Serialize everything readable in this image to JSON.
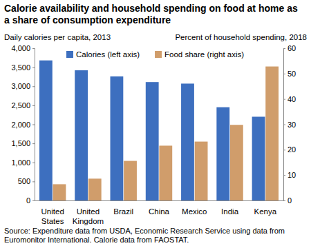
{
  "chart_data": {
    "type": "bar",
    "title": "Calorie availability and household spending on food at home as a share of consumption expenditure",
    "ylabel": "Daily calories per capita, 2013",
    "y2label": "Percent of household spending, 2018",
    "note": "Source: Expenditure data from USDA, Economic Research Service using data from Euromonitor International. Calorie data from FAOSTAT.",
    "categories": [
      "United States",
      "United Kingdom",
      "Brazil",
      "China",
      "Mexico",
      "India",
      "Kenya"
    ],
    "series": [
      {
        "name": "Calories (left axis)",
        "color": "#3d6fbf",
        "values": [
          3680,
          3420,
          3260,
          3110,
          3070,
          2450,
          2200
        ]
      },
      {
        "name": "Food share (right axis)",
        "color": "#d09d6b",
        "axis": "y2",
        "values": [
          6.4,
          8.6,
          15.6,
          21.6,
          23.2,
          29.8,
          52.8
        ]
      }
    ],
    "ylim": [
      0,
      4000
    ],
    "yticks": [
      0,
      500,
      {
        "value": 1000,
        "label": "1,000"
      },
      {
        "value": 1500,
        "label": "1,500"
      },
      {
        "value": 2000,
        "label": "2,000"
      },
      {
        "value": 2500,
        "label": "2,500"
      },
      {
        "value": 3000,
        "label": "3,000"
      },
      {
        "value": 3500,
        "label": "3,500"
      },
      {
        "value": 4000,
        "label": "4,000"
      }
    ],
    "y2lim": [
      0,
      60
    ],
    "y2ticks": [
      0,
      10,
      20,
      30,
      40,
      50,
      60
    ],
    "grid": false,
    "legend": "top"
  }
}
